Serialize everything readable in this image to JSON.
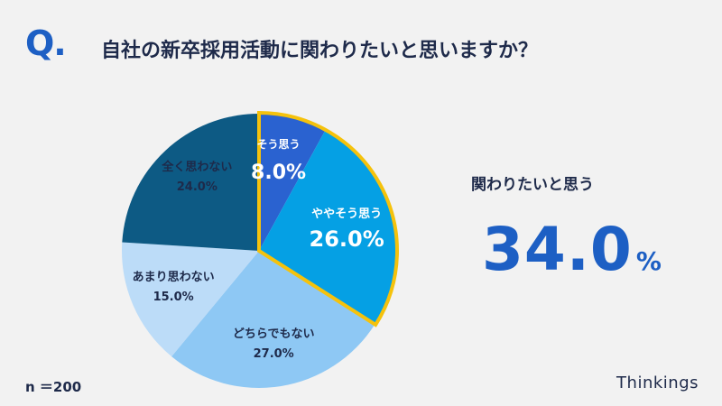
{
  "header": {
    "q_mark": "Q.",
    "question": "自社の新卒採用活動に関わりたいと思いますか？"
  },
  "highlight": {
    "label": "関わりたいと思う",
    "value": "34.0",
    "unit": "%"
  },
  "footer": {
    "sample": "n ＝200",
    "brand": "Thinkings"
  },
  "colors": {
    "title": "#1e2a4a",
    "accent": "#1d5fc4",
    "highlight_border": "#f5c20c"
  },
  "chart_data": {
    "type": "pie",
    "title": "自社の新卒採用活動に関わりたいと思いますか？",
    "categories": [
      "そう思う",
      "ややそう思う",
      "どちらでもない",
      "あまり思わない",
      "全く思わない"
    ],
    "values": [
      8.0,
      26.0,
      27.0,
      15.0,
      24.0
    ],
    "labels": [
      "8.0%",
      "26.0%",
      "27.0%",
      "15.0%",
      "24.0%"
    ],
    "colors": [
      "#2a62d0",
      "#05a0e4",
      "#8ec8f4",
      "#bcdcf8",
      "#0d5a84"
    ],
    "highlighted": [
      0,
      1
    ],
    "start_angle_deg": 0,
    "direction": "clockwise"
  }
}
